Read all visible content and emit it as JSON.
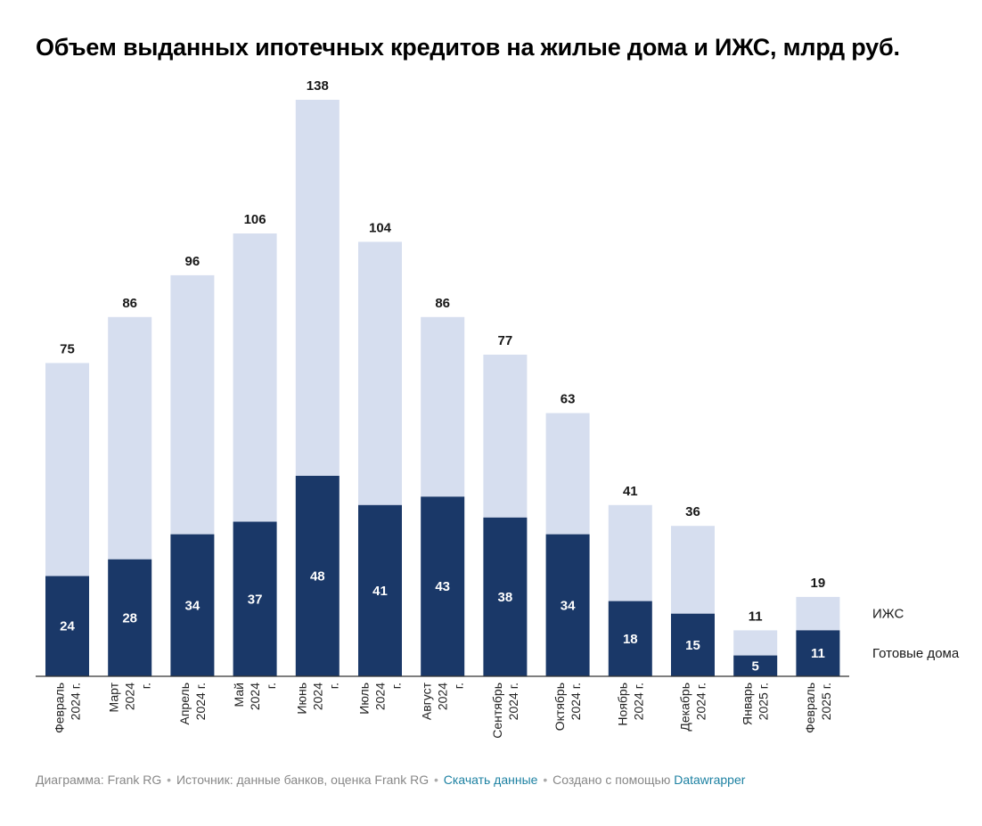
{
  "chart_data": {
    "type": "bar",
    "stacked": true,
    "title": "Объем выданных ипотечных кредитов на жилые дома и ИЖС, млрд руб.",
    "categories": [
      [
        "Февраль",
        "2024 г."
      ],
      [
        "Март",
        "2024",
        "г."
      ],
      [
        "Апрель",
        "2024 г."
      ],
      [
        "Май",
        "2024",
        "г."
      ],
      [
        "Июнь",
        "2024",
        "г."
      ],
      [
        "Июль",
        "2024",
        "г."
      ],
      [
        "Август",
        "2024",
        "г."
      ],
      [
        "Сентябрь",
        "2024 г."
      ],
      [
        "Октябрь",
        "2024 г."
      ],
      [
        "Ноябрь",
        "2024 г."
      ],
      [
        "Декабрь",
        "2024 г."
      ],
      [
        "Январь",
        "2025 г."
      ],
      [
        "Февраль",
        "2025 г."
      ]
    ],
    "series": [
      {
        "name": "Готовые дома",
        "color": "#1a3868",
        "values": [
          24,
          28,
          34,
          37,
          48,
          41,
          43,
          38,
          34,
          18,
          15,
          5,
          11
        ]
      },
      {
        "name": "ИЖС",
        "color": "#d6deef",
        "values": [
          51,
          58,
          62,
          69,
          90,
          63,
          43,
          39,
          29,
          23,
          21,
          6,
          8
        ]
      }
    ],
    "totals": [
      75,
      86,
      96,
      106,
      138,
      104,
      86,
      77,
      63,
      41,
      36,
      11,
      19
    ],
    "ylim": [
      0,
      138
    ],
    "grid": false,
    "legend_position": "right"
  },
  "footer": {
    "credit": "Диаграмма: Frank RG",
    "source": "Источник: данные банков, оценка Frank RG",
    "download_label": "Скачать данные",
    "made_with": "Создано с помощью",
    "tool_name": "Datawrapper",
    "separator": "•"
  }
}
